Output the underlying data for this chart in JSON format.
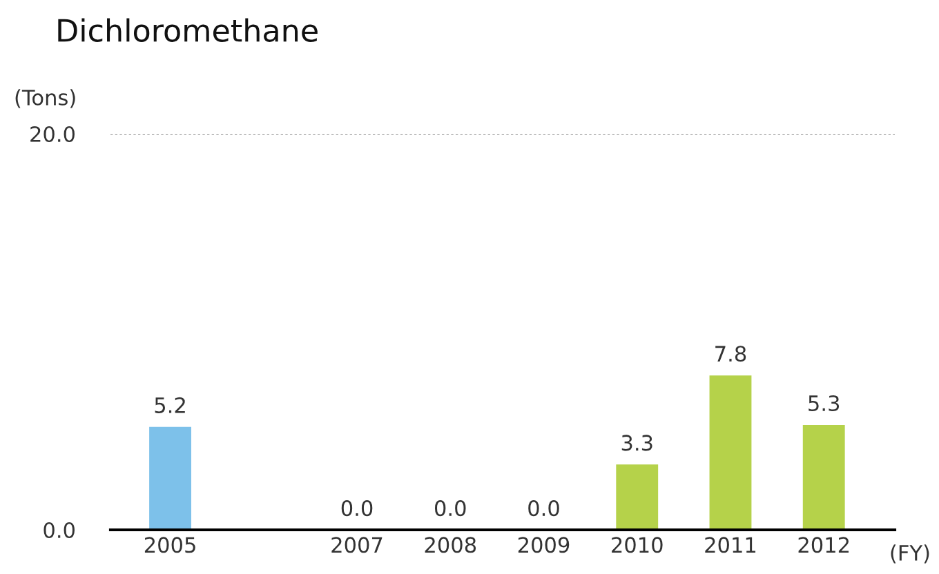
{
  "chart_data": {
    "type": "bar",
    "title": "Dichloromethane",
    "ylabel": "(Tons)",
    "xlabel": "(FY)",
    "categories": [
      "2005",
      null,
      "2007",
      "2008",
      "2009",
      "2010",
      "2011",
      "2012"
    ],
    "values": [
      5.2,
      null,
      0.0,
      0.0,
      0.0,
      3.3,
      7.8,
      5.3
    ],
    "colors": [
      "#7dc1ea",
      "#7dc1ea",
      "#b5d24a",
      "#b5d24a",
      "#b5d24a",
      "#b5d24a",
      "#b5d24a",
      "#b5d24a"
    ],
    "value_labels": [
      "5.2",
      null,
      "0.0",
      "0.0",
      "0.0",
      "3.3",
      "7.8",
      "5.3"
    ],
    "ylim": [
      0,
      20
    ],
    "yticks": [
      {
        "value": 0,
        "label": "0.0"
      },
      {
        "value": 20,
        "label": "20.0"
      }
    ],
    "ref_lines": [
      {
        "axis": "y",
        "value": 20,
        "label": null,
        "color": "#888888",
        "line_style": "dotted"
      }
    ],
    "legend": false
  }
}
